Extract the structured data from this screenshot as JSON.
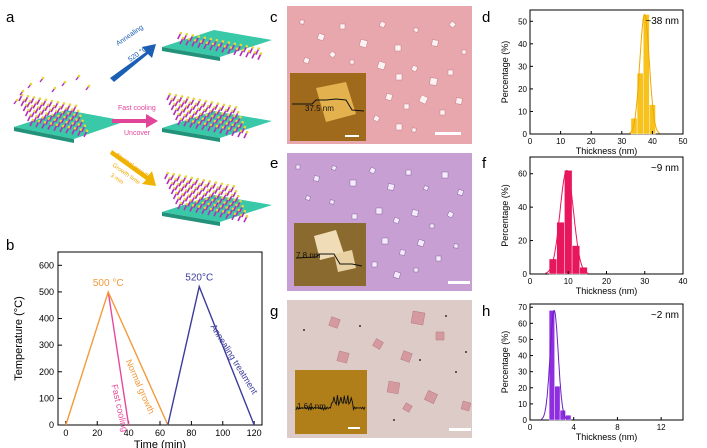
{
  "panels": {
    "a": {
      "letter": "a",
      "arrow_top": {
        "line1": "Annealing",
        "line2": "520 °C",
        "color": "#1a5fb4"
      },
      "arrow_mid": {
        "line1": "Fast cooling",
        "line2": "Uncover",
        "color": "#e0459a"
      },
      "arrow_bot": {
        "line1": "Normal growth",
        "line2": "Growth time",
        "line3": "3 min",
        "color": "#f0a800"
      }
    },
    "b": {
      "letter": "b",
      "chart_data": {
        "type": "line",
        "xlabel": "Time (min)",
        "ylabel": "Temperature (°C)",
        "xlim": [
          -5,
          125
        ],
        "ylim": [
          0,
          650
        ],
        "xticks": [
          0,
          20,
          40,
          60,
          80,
          100,
          120
        ],
        "yticks": [
          0,
          100,
          200,
          300,
          400,
          500,
          600
        ],
        "series": [
          {
            "name": "Fast cooling",
            "color": "#e8489c",
            "points": [
              [
                27,
                500
              ],
              [
                40,
                0
              ]
            ]
          },
          {
            "name": "Normal growth",
            "color": "#f39a3a",
            "points": [
              [
                0,
                0
              ],
              [
                27,
                500
              ],
              [
                65,
                0
              ]
            ]
          },
          {
            "name": "Annealing treatment",
            "color": "#3c3c9c",
            "points": [
              [
                65,
                0
              ],
              [
                85,
                520
              ],
              [
                120,
                0
              ]
            ]
          }
        ],
        "annotations": [
          {
            "text": "500 °C",
            "x": 27,
            "y": 500,
            "color": "#f39a3a"
          },
          {
            "text": "520°C",
            "x": 85,
            "y": 520,
            "color": "#3c3c9c"
          }
        ]
      }
    },
    "c": {
      "letter": "c",
      "inset_label": "37.5 nm",
      "bg": "#e8a7ad"
    },
    "e": {
      "letter": "e",
      "inset_label": "7.8 nm",
      "bg": "#c79fd2"
    },
    "g": {
      "letter": "g",
      "inset_label": "1.64 nm",
      "bg": "#dccbc6"
    },
    "d": {
      "letter": "d",
      "annotation": "~38 nm",
      "chart_data": {
        "type": "bar",
        "xlabel": "Thickness (nm)",
        "ylabel": "Percentage (%)",
        "xlim": [
          0,
          50
        ],
        "ylim": [
          0,
          55
        ],
        "xticks": [
          0,
          10,
          20,
          30,
          40,
          50
        ],
        "yticks": [
          0,
          10,
          20,
          30,
          40,
          50
        ],
        "bin_width": 2,
        "color": "#f7c21b",
        "bins": [
          [
            34,
            7
          ],
          [
            36,
            27
          ],
          [
            38,
            53
          ],
          [
            40,
            13
          ]
        ],
        "fit_color": "#f0a800"
      }
    },
    "f": {
      "letter": "f",
      "annotation": "~9 nm",
      "chart_data": {
        "type": "bar",
        "xlabel": "Thickness (nm)",
        "ylabel": "Percentage (%)",
        "xlim": [
          0,
          40
        ],
        "ylim": [
          0,
          70
        ],
        "xticks": [
          0,
          10,
          20,
          30,
          40
        ],
        "yticks": [
          0,
          20,
          40,
          60
        ],
        "bin_width": 2,
        "color": "#e8175d",
        "bins": [
          [
            6,
            9
          ],
          [
            8,
            31
          ],
          [
            10,
            62
          ],
          [
            12,
            17
          ],
          [
            14,
            4
          ]
        ],
        "fit_color": "#e8175d"
      }
    },
    "h": {
      "letter": "h",
      "annotation": "~2 nm",
      "chart_data": {
        "type": "bar",
        "xlabel": "Thickness (nm)",
        "ylabel": "Percentage (%)",
        "xlim": [
          0,
          14
        ],
        "ylim": [
          0,
          72
        ],
        "xticks": [
          0,
          4,
          8,
          12
        ],
        "yticks": [
          0,
          10,
          20,
          30,
          40,
          50,
          60,
          70
        ],
        "bin_width": 0.5,
        "color": "#8f2ee0",
        "bins": [
          [
            2.0,
            68
          ],
          [
            2.5,
            21
          ],
          [
            3.0,
            6
          ],
          [
            3.5,
            3
          ]
        ],
        "fit_color": "#6b1fc8"
      }
    }
  }
}
